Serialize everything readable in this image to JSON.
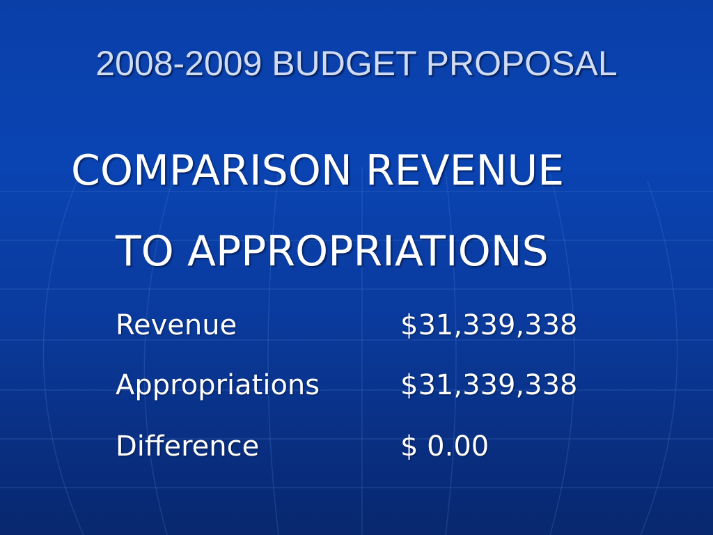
{
  "slide": {
    "title": "2008-2009 BUDGET PROPOSAL",
    "subtitle_line1": "COMPARISON REVENUE",
    "subtitle_line2": "TO APPROPRIATIONS",
    "rows": [
      {
        "label": "Revenue",
        "value": "$31,339,338"
      },
      {
        "label": "Appropriations",
        "value": "$31,339,338"
      },
      {
        "label": "Difference",
        "value": "$ 0.00"
      }
    ]
  },
  "colors": {
    "background": "#0a3fa8",
    "title_text": "#d0dcf4",
    "body_text": "#ffffff"
  }
}
